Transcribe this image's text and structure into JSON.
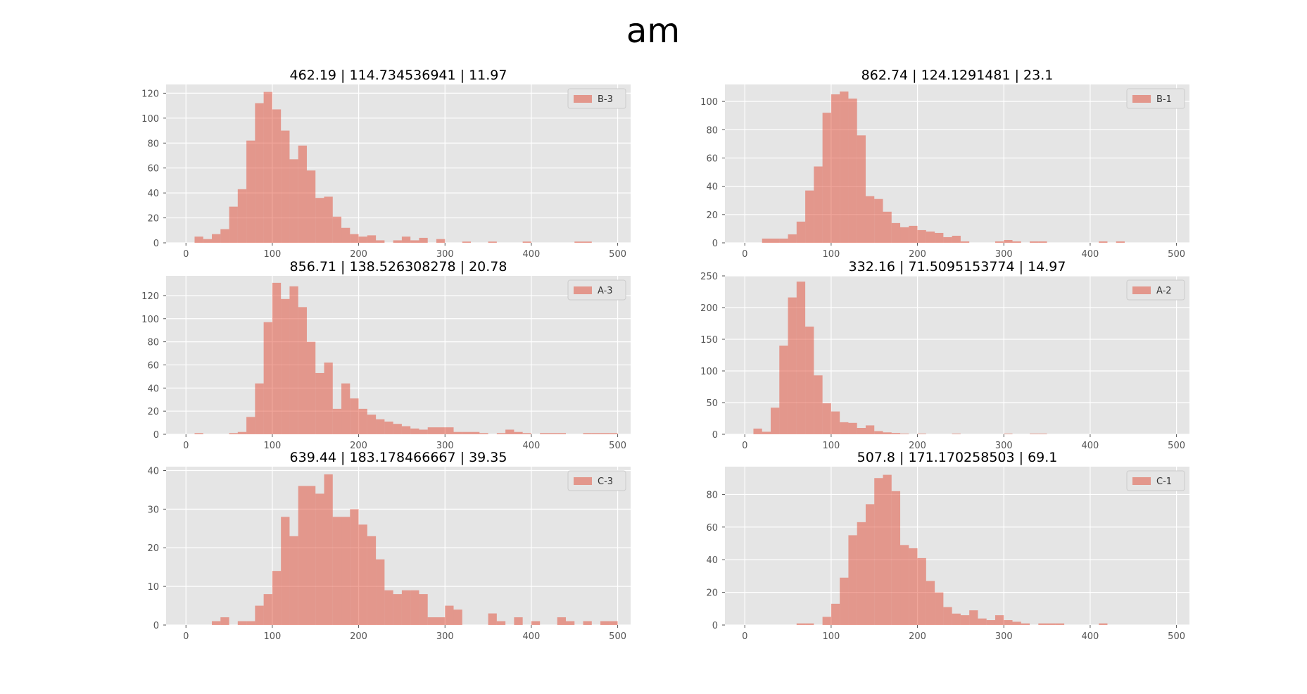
{
  "figure": {
    "title": "am",
    "style": {
      "panel_bg": "#e5e5e5",
      "grid": "#ffffff",
      "bar": "#e24a33",
      "bar_alpha": 0.5,
      "tick_color": "#555555"
    }
  },
  "chart_data": [
    {
      "type": "bar",
      "title": "462.19 | 114.734536941 | 11.97",
      "legend": "B-3",
      "legend_position": "top-right",
      "grid": true,
      "xlim": [
        -23,
        515
      ],
      "ylim": [
        0,
        127
      ],
      "xticks": [
        0,
        100,
        200,
        300,
        400,
        500
      ],
      "yticks": [
        0,
        20,
        40,
        60,
        80,
        100,
        120
      ],
      "bin_width": 10,
      "bins_start": [
        10,
        20,
        30,
        40,
        50,
        60,
        70,
        80,
        90,
        100,
        110,
        120,
        130,
        140,
        150,
        160,
        170,
        180,
        190,
        200,
        210,
        220,
        230,
        240,
        250,
        260,
        270,
        280,
        290,
        300,
        310,
        320,
        330,
        340,
        350,
        360,
        370,
        380,
        390,
        400,
        410,
        420,
        430,
        440,
        450,
        460,
        470,
        480,
        490
      ],
      "values": [
        5,
        3,
        7,
        11,
        29,
        43,
        82,
        112,
        121,
        107,
        90,
        67,
        78,
        58,
        36,
        37,
        21,
        12,
        7,
        5,
        6,
        2,
        0,
        2,
        5,
        2,
        4,
        0,
        3,
        0,
        0,
        1,
        0,
        0,
        1,
        0,
        0,
        0,
        1,
        0,
        0,
        0,
        0,
        0,
        1,
        1,
        0,
        0,
        0
      ]
    },
    {
      "type": "bar",
      "title": "862.74 | 124.1291481 | 23.1",
      "legend": "B-1",
      "legend_position": "top-right",
      "grid": true,
      "xlim": [
        -23,
        515
      ],
      "ylim": [
        0,
        112
      ],
      "xticks": [
        0,
        100,
        200,
        300,
        400,
        500
      ],
      "yticks": [
        0,
        20,
        40,
        60,
        80,
        100
      ],
      "bin_width": 10,
      "bins_start": [
        20,
        30,
        40,
        50,
        60,
        70,
        80,
        90,
        100,
        110,
        120,
        130,
        140,
        150,
        160,
        170,
        180,
        190,
        200,
        210,
        220,
        230,
        240,
        250,
        260,
        270,
        280,
        290,
        300,
        310,
        320,
        330,
        340,
        350,
        360,
        370,
        380,
        390,
        400,
        410,
        420,
        430,
        440,
        450,
        460,
        470,
        480,
        490
      ],
      "values": [
        3,
        3,
        3,
        6,
        15,
        37,
        54,
        92,
        105,
        107,
        102,
        76,
        33,
        31,
        22,
        14,
        11,
        12,
        9,
        8,
        7,
        4,
        5,
        1,
        0,
        0,
        0,
        1,
        2,
        1,
        0,
        1,
        1,
        0,
        0,
        0,
        0,
        0,
        0,
        1,
        0,
        1,
        0,
        0,
        0,
        0,
        0,
        0
      ]
    },
    {
      "type": "bar",
      "title": "856.71 | 138.526308278 | 20.78",
      "legend": "A-3",
      "legend_position": "top-right",
      "grid": true,
      "xlim": [
        -23,
        515
      ],
      "ylim": [
        0,
        137
      ],
      "xticks": [
        0,
        100,
        200,
        300,
        400,
        500
      ],
      "yticks": [
        0,
        20,
        40,
        60,
        80,
        100,
        120
      ],
      "bin_width": 10,
      "bins_start": [
        10,
        20,
        30,
        40,
        50,
        60,
        70,
        80,
        90,
        100,
        110,
        120,
        130,
        140,
        150,
        160,
        170,
        180,
        190,
        200,
        210,
        220,
        230,
        240,
        250,
        260,
        270,
        280,
        290,
        300,
        310,
        320,
        330,
        340,
        350,
        360,
        370,
        380,
        390,
        400,
        410,
        420,
        430,
        440,
        450,
        460,
        470,
        480,
        490
      ],
      "values": [
        1,
        0,
        0,
        0,
        1,
        2,
        15,
        44,
        97,
        131,
        117,
        128,
        110,
        80,
        53,
        62,
        22,
        44,
        31,
        22,
        17,
        13,
        11,
        9,
        7,
        5,
        4,
        6,
        6,
        6,
        2,
        2,
        2,
        1,
        0,
        1,
        4,
        2,
        1,
        0,
        1,
        1,
        1,
        0,
        0,
        1,
        1,
        1,
        1
      ]
    },
    {
      "type": "bar",
      "title": "332.16 | 71.5095153774 | 14.97",
      "legend": "A-2",
      "legend_position": "top-right",
      "grid": true,
      "xlim": [
        -23,
        515
      ],
      "ylim": [
        0,
        250
      ],
      "xticks": [
        0,
        100,
        200,
        300,
        400,
        500
      ],
      "yticks": [
        0,
        50,
        100,
        150,
        200,
        250
      ],
      "bin_width": 10,
      "bins_start": [
        10,
        20,
        30,
        40,
        50,
        60,
        70,
        80,
        90,
        100,
        110,
        120,
        130,
        140,
        150,
        160,
        170,
        180,
        190,
        200,
        210,
        220,
        230,
        240,
        250,
        260,
        270,
        280,
        290,
        300,
        310,
        320,
        330,
        340,
        350,
        360,
        370,
        380,
        390,
        400,
        410,
        420,
        430,
        440,
        450,
        460,
        470,
        480,
        490
      ],
      "values": [
        9,
        4,
        42,
        140,
        216,
        241,
        170,
        93,
        49,
        36,
        19,
        18,
        10,
        14,
        5,
        3,
        2,
        1,
        0,
        1,
        0,
        0,
        0,
        1,
        0,
        0,
        0,
        0,
        0,
        1,
        0,
        0,
        1,
        1,
        0,
        0,
        0,
        0,
        0,
        0,
        0,
        0,
        0,
        0,
        0,
        0,
        0,
        0,
        0
      ]
    },
    {
      "type": "bar",
      "title": "639.44 | 183.178466667 | 39.35",
      "legend": "C-3",
      "legend_position": "top-right",
      "grid": true,
      "xlim": [
        -23,
        515
      ],
      "ylim": [
        0,
        41
      ],
      "xticks": [
        0,
        100,
        200,
        300,
        400,
        500
      ],
      "yticks": [
        0,
        10,
        20,
        30,
        40
      ],
      "bin_width": 10,
      "bins_start": [
        30,
        40,
        50,
        60,
        70,
        80,
        90,
        100,
        110,
        120,
        130,
        140,
        150,
        160,
        170,
        180,
        190,
        200,
        210,
        220,
        230,
        240,
        250,
        260,
        270,
        280,
        290,
        300,
        310,
        320,
        330,
        340,
        350,
        360,
        370,
        380,
        390,
        400,
        410,
        420,
        430,
        440,
        450,
        460,
        470,
        480,
        490
      ],
      "values": [
        1,
        2,
        0,
        1,
        1,
        5,
        8,
        14,
        28,
        23,
        36,
        36,
        34,
        39,
        28,
        28,
        30,
        26,
        23,
        17,
        9,
        8,
        9,
        9,
        8,
        2,
        2,
        5,
        4,
        0,
        0,
        0,
        3,
        1,
        0,
        2,
        0,
        1,
        0,
        0,
        2,
        1,
        0,
        1,
        0,
        1,
        1
      ]
    },
    {
      "type": "bar",
      "title": "507.8 | 171.170258503 | 69.1",
      "legend": "C-1",
      "legend_position": "top-right",
      "grid": true,
      "xlim": [
        -23,
        515
      ],
      "ylim": [
        0,
        97
      ],
      "xticks": [
        0,
        100,
        200,
        300,
        400,
        500
      ],
      "yticks": [
        0,
        20,
        40,
        60,
        80
      ],
      "bin_width": 10,
      "bins_start": [
        60,
        70,
        80,
        90,
        100,
        110,
        120,
        130,
        140,
        150,
        160,
        170,
        180,
        190,
        200,
        210,
        220,
        230,
        240,
        250,
        260,
        270,
        280,
        290,
        300,
        310,
        320,
        330,
        340,
        350,
        360,
        370,
        380,
        390,
        400,
        410,
        420,
        430,
        440,
        450,
        460,
        470,
        480,
        490
      ],
      "values": [
        1,
        1,
        0,
        5,
        13,
        29,
        55,
        63,
        74,
        90,
        92,
        82,
        49,
        47,
        41,
        27,
        20,
        11,
        7,
        6,
        9,
        4,
        3,
        6,
        3,
        2,
        1,
        0,
        1,
        1,
        1,
        0,
        0,
        0,
        0,
        1,
        0,
        0,
        0,
        0,
        0,
        0,
        0,
        0
      ]
    }
  ]
}
